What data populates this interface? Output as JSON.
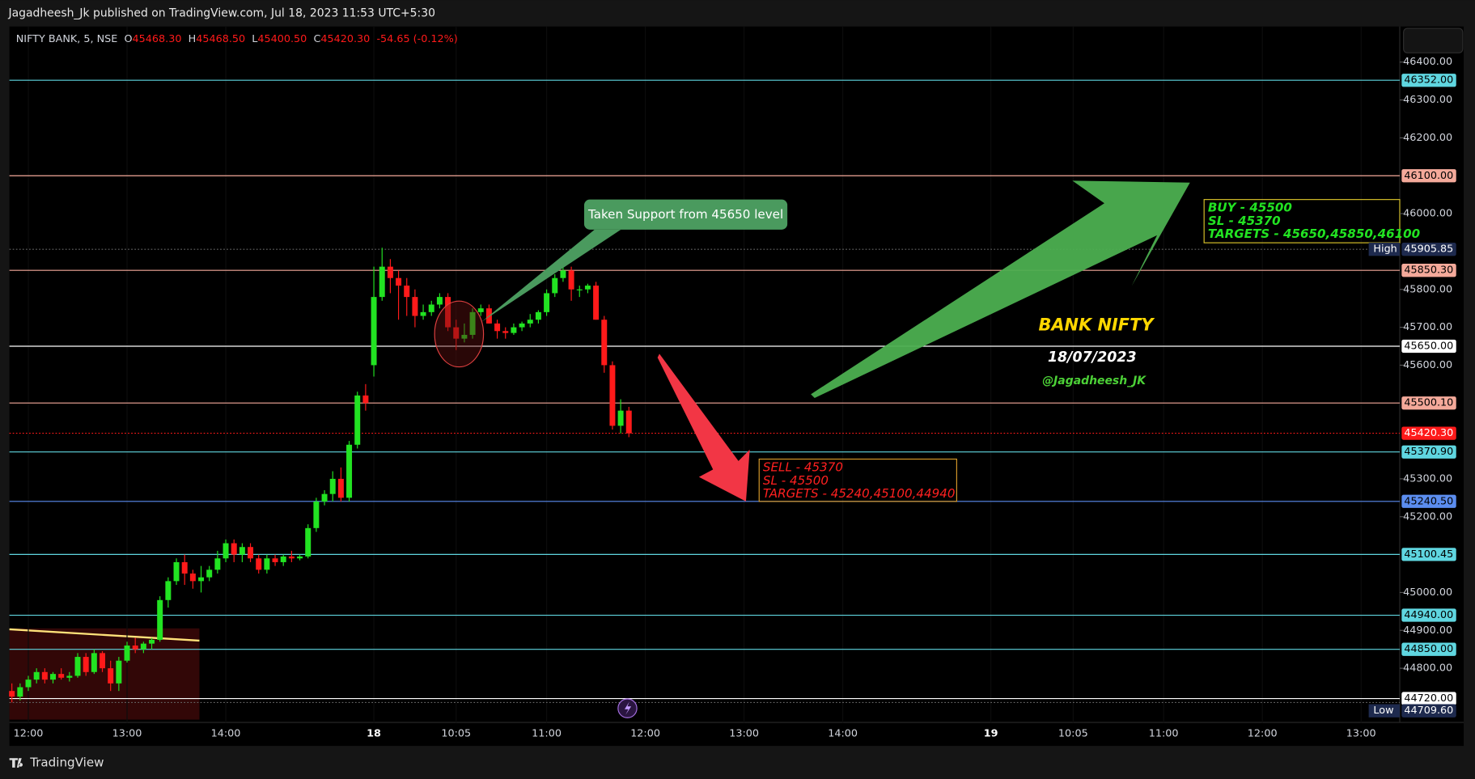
{
  "chart_data": {
    "type": "candlestick",
    "header": "Jagadheesh_Jk published on TradingView.com, Jul 18, 2023 11:53 UTC+5:30",
    "legend": {
      "symbol": "NIFTY BANK, 5, NSE",
      "fields": [
        {
          "key": "O",
          "value": "45468.30"
        },
        {
          "key": "H",
          "value": "45468.50"
        },
        {
          "key": "L",
          "value": "45400.50"
        },
        {
          "key": "C",
          "value": "45420.30"
        }
      ],
      "change": "-54.65 (-0.12%)"
    },
    "footer": "TradingView",
    "up_color": "#22e322",
    "down_color": "#ff1a1a",
    "ylim": [
      44657,
      46494
    ],
    "yticks": [
      {
        "value": 46400,
        "label": "46400.00"
      },
      {
        "value": 46300,
        "label": "46300.00"
      },
      {
        "value": 46200,
        "label": "46200.00"
      },
      {
        "value": 46000,
        "label": "46000.00"
      },
      {
        "value": 45800,
        "label": "45800.00"
      },
      {
        "value": 45700,
        "label": "45700.00"
      },
      {
        "value": 45600,
        "label": "45600.00"
      },
      {
        "value": 45300,
        "label": "45300.00"
      },
      {
        "value": 45200,
        "label": "45200.00"
      },
      {
        "value": 45000,
        "label": "45000.00"
      },
      {
        "value": 44900,
        "label": "44900.00"
      },
      {
        "value": 44800,
        "label": "44800.00"
      }
    ],
    "xlim": [
      -44.3,
      124.7
    ],
    "xticks": [
      {
        "value": -42,
        "label": "12:00"
      },
      {
        "value": -30,
        "label": "13:00"
      },
      {
        "value": -18,
        "label": "14:00"
      },
      {
        "value": 0,
        "label": "18"
      },
      {
        "value": 10,
        "label": "10:05"
      },
      {
        "value": 21,
        "label": "11:00"
      },
      {
        "value": 33,
        "label": "12:00"
      },
      {
        "value": 45,
        "label": "13:00"
      },
      {
        "value": 57,
        "label": "14:00"
      },
      {
        "value": 75,
        "label": "19"
      },
      {
        "value": 85,
        "label": "10:05"
      },
      {
        "value": 96,
        "label": "11:00"
      },
      {
        "value": 108,
        "label": "12:00"
      },
      {
        "value": 120,
        "label": "13:00"
      }
    ],
    "x": [
      -44,
      -43,
      -42,
      -41,
      -40,
      -39,
      -38,
      -37,
      -36,
      -35,
      -34,
      -33,
      -32,
      -31,
      -30,
      -29,
      -28,
      -27,
      -26,
      -25,
      -24,
      -23,
      -22,
      -21,
      -20,
      -19,
      -18,
      -17,
      -16,
      -15,
      -14,
      -13,
      -12,
      -11,
      -10,
      -9,
      -8,
      -7,
      -6,
      -5,
      -4,
      -3,
      -2,
      -1,
      0,
      1,
      2,
      3,
      4,
      5,
      6,
      7,
      8,
      9,
      10,
      11,
      12,
      13,
      14,
      15,
      16,
      17,
      18,
      19,
      20,
      21,
      22,
      23,
      24,
      25,
      26,
      27,
      28,
      29,
      30,
      31
    ],
    "open": [
      44740,
      44725,
      44750,
      44770,
      44790,
      44770,
      44785,
      44775,
      44780,
      44830,
      44790,
      44840,
      44800,
      44760,
      44820,
      44860,
      44850,
      44865,
      44875,
      44980,
      45030,
      45080,
      45050,
      45030,
      45040,
      45060,
      45090,
      45130,
      45100,
      45120,
      45090,
      45060,
      45090,
      45080,
      45095,
      45090,
      45095,
      45170,
      45240,
      45260,
      45300,
      45250,
      45390,
      45520,
      45600,
      45780,
      45860,
      45830,
      45810,
      45780,
      45730,
      45740,
      45760,
      45780,
      45700,
      45670,
      45680,
      45740,
      45750,
      45710,
      45690,
      45685,
      45700,
      45710,
      45720,
      45740,
      45790,
      45830,
      45850,
      45800,
      45800,
      45810,
      45720,
      45600,
      45440,
      45480
    ],
    "high": [
      44760,
      44760,
      44780,
      44800,
      44800,
      44790,
      44800,
      44790,
      44840,
      44840,
      44850,
      44845,
      44820,
      44830,
      44870,
      44880,
      44870,
      44880,
      44990,
      45040,
      45090,
      45100,
      45060,
      45070,
      45070,
      45110,
      45140,
      45140,
      45130,
      45130,
      45100,
      45100,
      45100,
      45100,
      45110,
      45100,
      45180,
      45250,
      45270,
      45320,
      45330,
      45400,
      45530,
      45550,
      45860,
      45910,
      45880,
      45850,
      45830,
      45800,
      45760,
      45770,
      45790,
      45790,
      45720,
      45710,
      45750,
      45760,
      45760,
      45720,
      45700,
      45710,
      45715,
      45735,
      45745,
      45800,
      45840,
      45860,
      45860,
      45810,
      45815,
      45820,
      45730,
      45610,
      45510,
      45490
    ],
    "low": [
      44710,
      44715,
      44740,
      44760,
      44760,
      44760,
      44770,
      44765,
      44775,
      44780,
      44785,
      44790,
      44740,
      44740,
      44815,
      44840,
      44840,
      44850,
      44870,
      44960,
      45020,
      45020,
      45010,
      45000,
      45030,
      45050,
      45080,
      45080,
      45080,
      45080,
      45050,
      45050,
      45070,
      45070,
      45080,
      45085,
      45090,
      45160,
      45230,
      45240,
      45240,
      45240,
      45380,
      45480,
      45570,
      45770,
      45790,
      45720,
      45730,
      45700,
      45720,
      45730,
      45750,
      45690,
      45640,
      45660,
      45670,
      45730,
      45710,
      45670,
      45670,
      45680,
      45690,
      45700,
      45710,
      45730,
      45780,
      45820,
      45770,
      45780,
      45790,
      45720,
      45580,
      45430,
      45420,
      45410
    ],
    "close": [
      44725,
      44750,
      44770,
      44790,
      44770,
      44785,
      44775,
      44780,
      44830,
      44790,
      44840,
      44800,
      44760,
      44820,
      44860,
      44850,
      44865,
      44875,
      44980,
      45030,
      45080,
      45050,
      45030,
      45040,
      45060,
      45090,
      45130,
      45100,
      45120,
      45090,
      45060,
      45090,
      45080,
      45095,
      45090,
      45095,
      45170,
      45240,
      45260,
      45300,
      45250,
      45390,
      45520,
      45500,
      45780,
      45860,
      45830,
      45810,
      45780,
      45730,
      45740,
      45760,
      45780,
      45700,
      45670,
      45680,
      45740,
      45750,
      45710,
      45690,
      45685,
      45700,
      45710,
      45720,
      45740,
      45790,
      45830,
      45850,
      45800,
      45800,
      45810,
      45720,
      45600,
      45440,
      45480,
      45420
    ],
    "levels": [
      {
        "value": 46352.0,
        "label": "46352.00",
        "color": "#5fd6e0",
        "text_color": "#000000",
        "dash": false
      },
      {
        "value": 46100.0,
        "label": "46100.00",
        "color": "#f4a99a",
        "text_color": "#000000",
        "dash": false
      },
      {
        "value": 45905.85,
        "label": "45905.85",
        "color": "#1e2a4e",
        "text_color": "#ffffff",
        "dash": true,
        "tag": "High"
      },
      {
        "value": 45850.3,
        "label": "45850.30",
        "color": "#f4a99a",
        "text_color": "#000000",
        "dash": false
      },
      {
        "value": 45650.0,
        "label": "45650.00",
        "color": "#ffffff",
        "text_color": "#000000",
        "dash": false
      },
      {
        "value": 45500.1,
        "label": "45500.10",
        "color": "#f4a99a",
        "text_color": "#000000",
        "dash": false
      },
      {
        "value": 45420.3,
        "label": "45420.30",
        "color": "#ff1a1a",
        "text_color": "#ffffff",
        "dash": true
      },
      {
        "value": 45370.9,
        "label": "45370.90",
        "color": "#5fd6e0",
        "text_color": "#000000",
        "dash": false
      },
      {
        "value": 45240.5,
        "label": "45240.50",
        "color": "#5b8def",
        "text_color": "#000000",
        "dash": false
      },
      {
        "value": 45100.45,
        "label": "45100.45",
        "color": "#5fd6e0",
        "text_color": "#000000",
        "dash": false
      },
      {
        "value": 44940.0,
        "label": "44940.00",
        "color": "#5fd6e0",
        "text_color": "#000000",
        "dash": false
      },
      {
        "value": 44850.0,
        "label": "44850.00",
        "color": "#5fd6e0",
        "text_color": "#000000",
        "dash": false
      },
      {
        "value": 44720.0,
        "label": "44720.00",
        "color": "#ffffff",
        "text_color": "#000000",
        "dash": false
      },
      {
        "value": 44709.6,
        "label": "44709.60",
        "color": "#1e2a4e",
        "text_color": "#ffffff",
        "dash": true,
        "tag": "Low"
      }
    ],
    "annotations": {
      "callout": "Taken Support from 45650 level",
      "title": "BANK NIFTY",
      "date": "18/07/2023",
      "handle": "@Jagadheesh_JK",
      "buy": [
        "BUY - 45500",
        "SL - 45370",
        "TARGETS - 45650,45850,46100"
      ],
      "sell": [
        "SELL - 45370",
        "SL - 45500",
        "TARGETS - 45240,45100,44940"
      ]
    }
  }
}
